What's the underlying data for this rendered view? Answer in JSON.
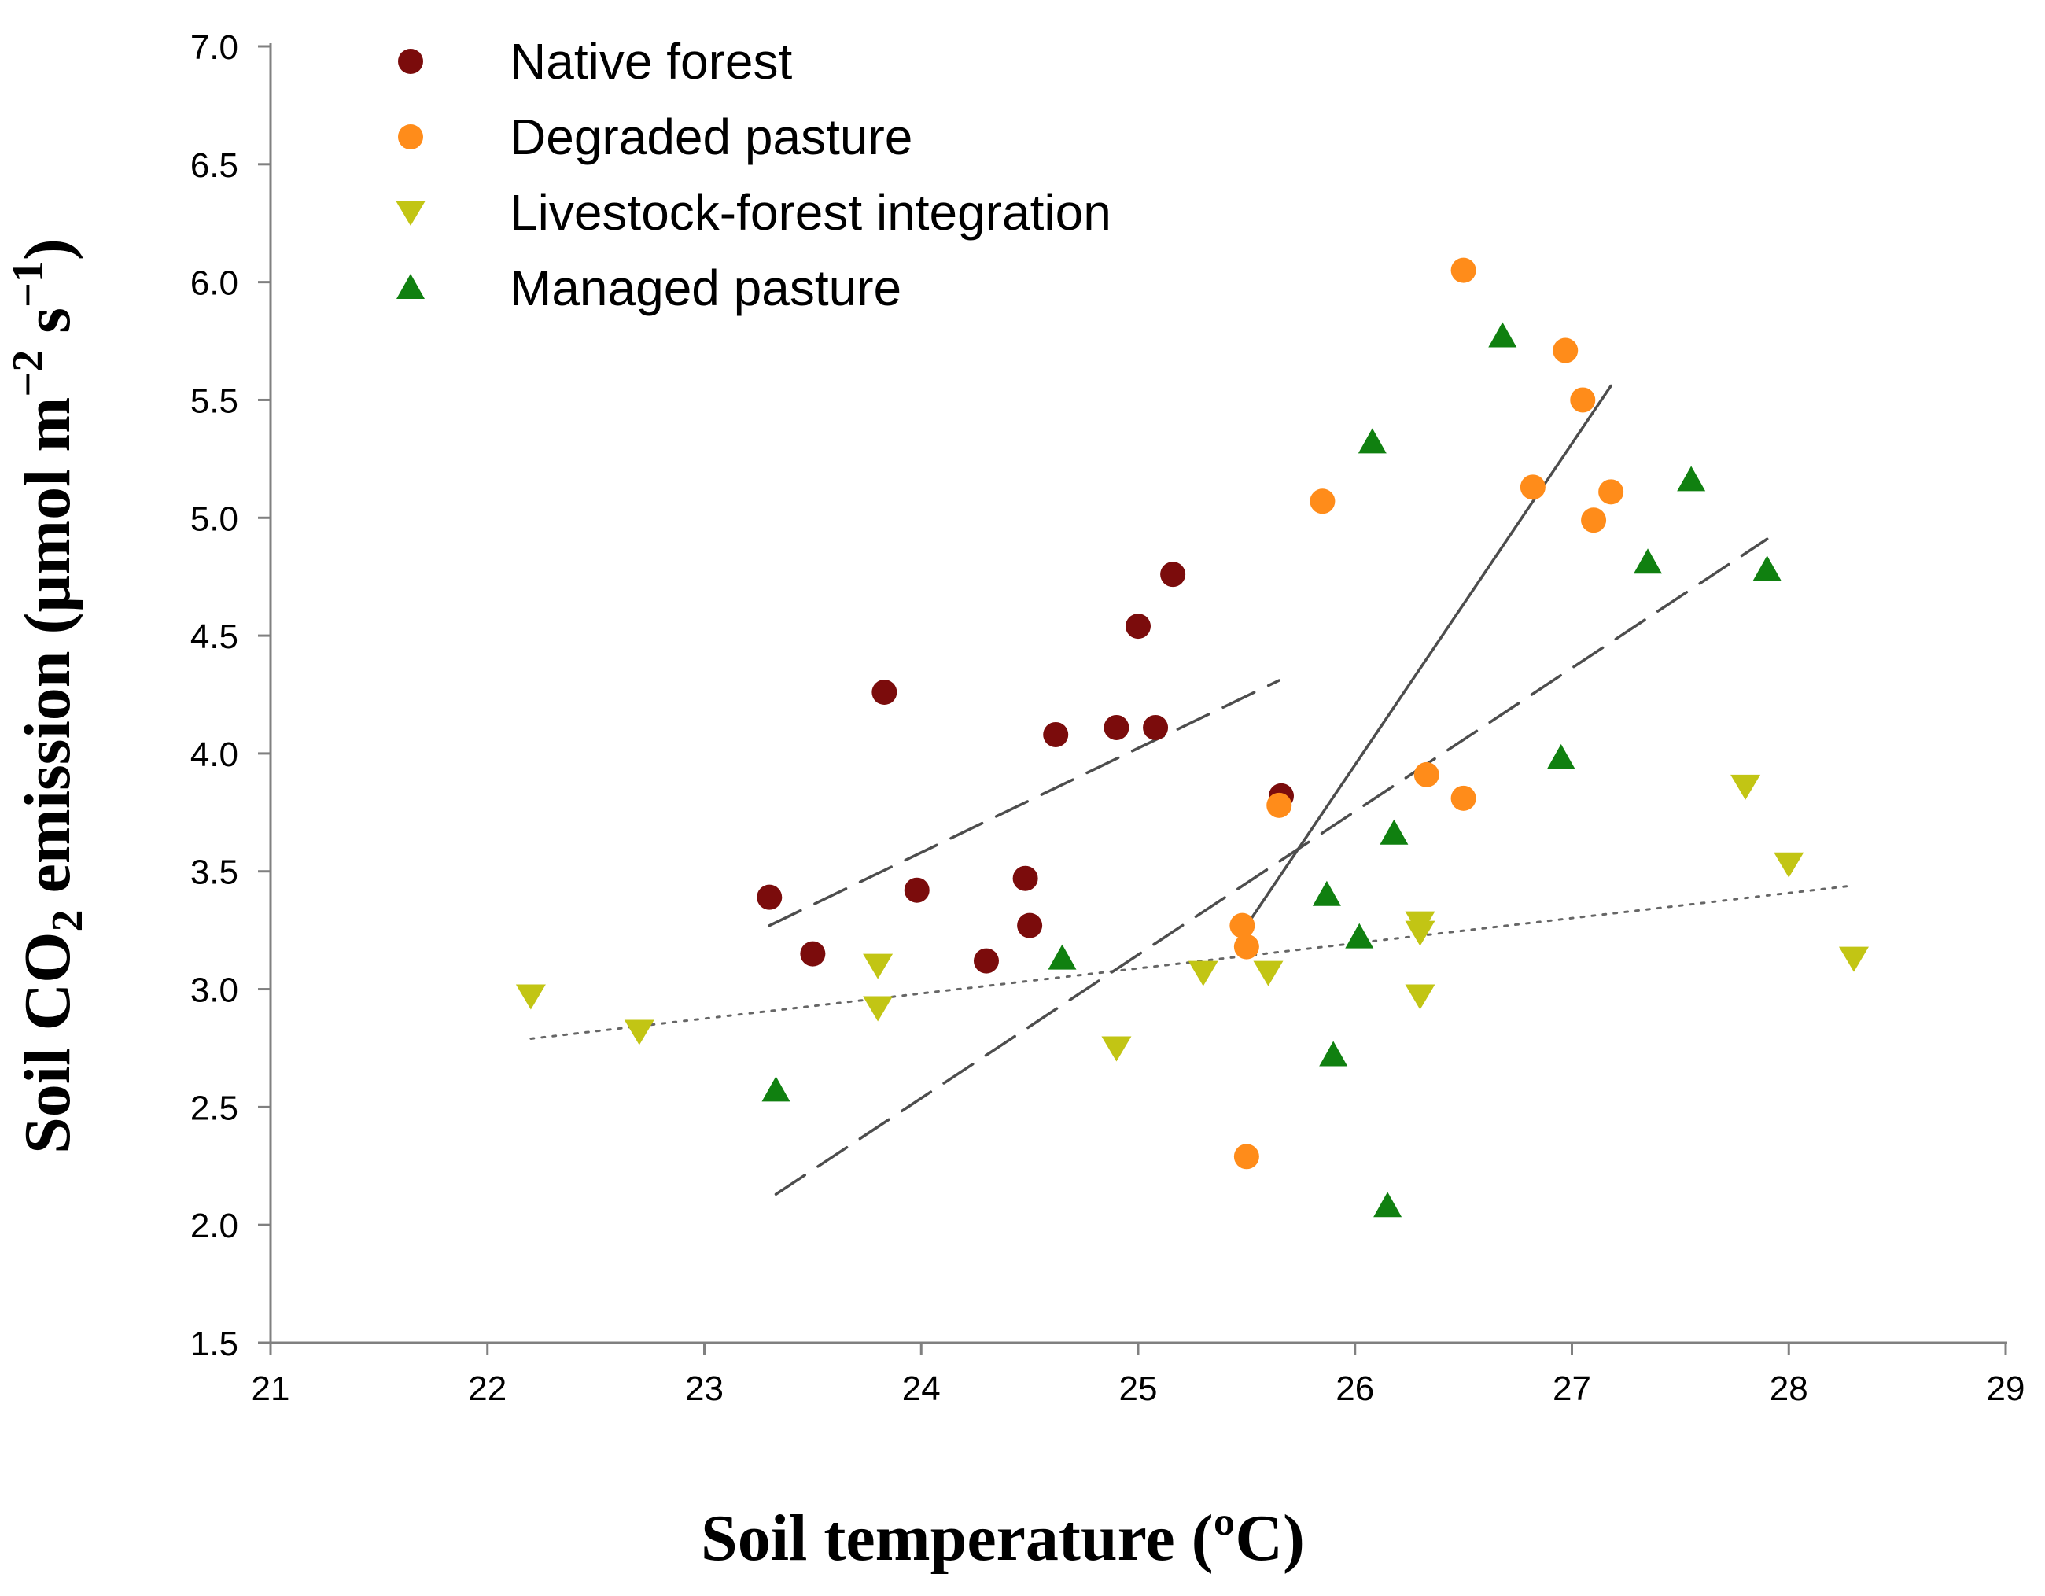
{
  "chart_data": {
    "type": "scatter",
    "title": "",
    "xlabel": "Soil temperature (ºC)",
    "ylabel": {
      "prefix": "Soil CO",
      "subscript": "2",
      "middle": " emission (μmol m",
      "sup1": "−2",
      "middle2": " s",
      "sup2": "−1",
      "suffix": ")"
    },
    "xlim": [
      21,
      29
    ],
    "ylim": [
      1.5,
      7.0
    ],
    "x_ticks": [
      "21",
      "22",
      "23",
      "24",
      "25",
      "26",
      "27",
      "28",
      "29"
    ],
    "y_ticks": [
      "1.5",
      "2.0",
      "2.5",
      "3.0",
      "3.5",
      "4.0",
      "4.5",
      "5.0",
      "5.5",
      "6.0",
      "6.5",
      "7.0"
    ],
    "grid": false,
    "legend_position": "top-left",
    "series": [
      {
        "name": "Native forest",
        "marker": "circle",
        "color": "#7b0c0c",
        "points": [
          [
            23.3,
            3.39
          ],
          [
            23.5,
            3.15
          ],
          [
            23.83,
            4.26
          ],
          [
            23.98,
            3.42
          ],
          [
            24.3,
            3.12
          ],
          [
            24.48,
            3.47
          ],
          [
            24.5,
            3.27
          ],
          [
            24.62,
            4.08
          ],
          [
            24.9,
            4.11
          ],
          [
            25.0,
            4.54
          ],
          [
            25.08,
            4.11
          ],
          [
            25.16,
            4.76
          ],
          [
            25.66,
            3.82
          ]
        ],
        "trend": {
          "style": "dashed",
          "x": [
            23.3,
            25.65
          ],
          "y": [
            3.27,
            4.31
          ]
        }
      },
      {
        "name": "Degraded pasture",
        "marker": "circle",
        "color": "#ff8c1a",
        "points": [
          [
            25.48,
            3.27
          ],
          [
            25.5,
            3.18
          ],
          [
            25.5,
            2.29
          ],
          [
            25.65,
            3.78
          ],
          [
            25.85,
            5.07
          ],
          [
            26.33,
            3.91
          ],
          [
            26.5,
            3.81
          ],
          [
            26.5,
            6.05
          ],
          [
            26.82,
            5.13
          ],
          [
            26.97,
            5.71
          ],
          [
            27.05,
            5.5
          ],
          [
            27.1,
            4.99
          ],
          [
            27.18,
            5.11
          ]
        ],
        "trend": {
          "style": "solid",
          "x": [
            25.5,
            27.18
          ],
          "y": [
            3.27,
            5.56
          ]
        }
      },
      {
        "name": "Livestock-forest integration",
        "marker": "triangle-down",
        "color": "#c2c514",
        "points": [
          [
            22.2,
            2.97
          ],
          [
            22.7,
            2.82
          ],
          [
            23.8,
            3.1
          ],
          [
            23.8,
            2.92
          ],
          [
            24.9,
            2.75
          ],
          [
            25.3,
            3.07
          ],
          [
            25.6,
            3.07
          ],
          [
            26.3,
            3.28
          ],
          [
            26.3,
            3.24
          ],
          [
            26.3,
            2.97
          ],
          [
            27.8,
            3.86
          ],
          [
            28.0,
            3.53
          ],
          [
            28.3,
            3.13
          ]
        ],
        "trend": {
          "style": "dotted",
          "x": [
            22.2,
            28.3
          ],
          "y": [
            2.79,
            3.44
          ]
        }
      },
      {
        "name": "Managed pasture",
        "marker": "triangle-up",
        "color": "#108010",
        "points": [
          [
            23.33,
            2.57
          ],
          [
            24.65,
            3.13
          ],
          [
            25.87,
            3.4
          ],
          [
            25.9,
            2.72
          ],
          [
            26.02,
            3.22
          ],
          [
            26.08,
            5.32
          ],
          [
            26.15,
            2.08
          ],
          [
            26.18,
            3.66
          ],
          [
            26.68,
            5.77
          ],
          [
            26.95,
            3.98
          ],
          [
            27.35,
            4.81
          ],
          [
            27.55,
            5.16
          ],
          [
            27.9,
            4.78
          ]
        ],
        "trend": {
          "style": "dashed",
          "x": [
            23.33,
            27.9
          ],
          "y": [
            2.13,
            4.91
          ]
        }
      }
    ]
  }
}
